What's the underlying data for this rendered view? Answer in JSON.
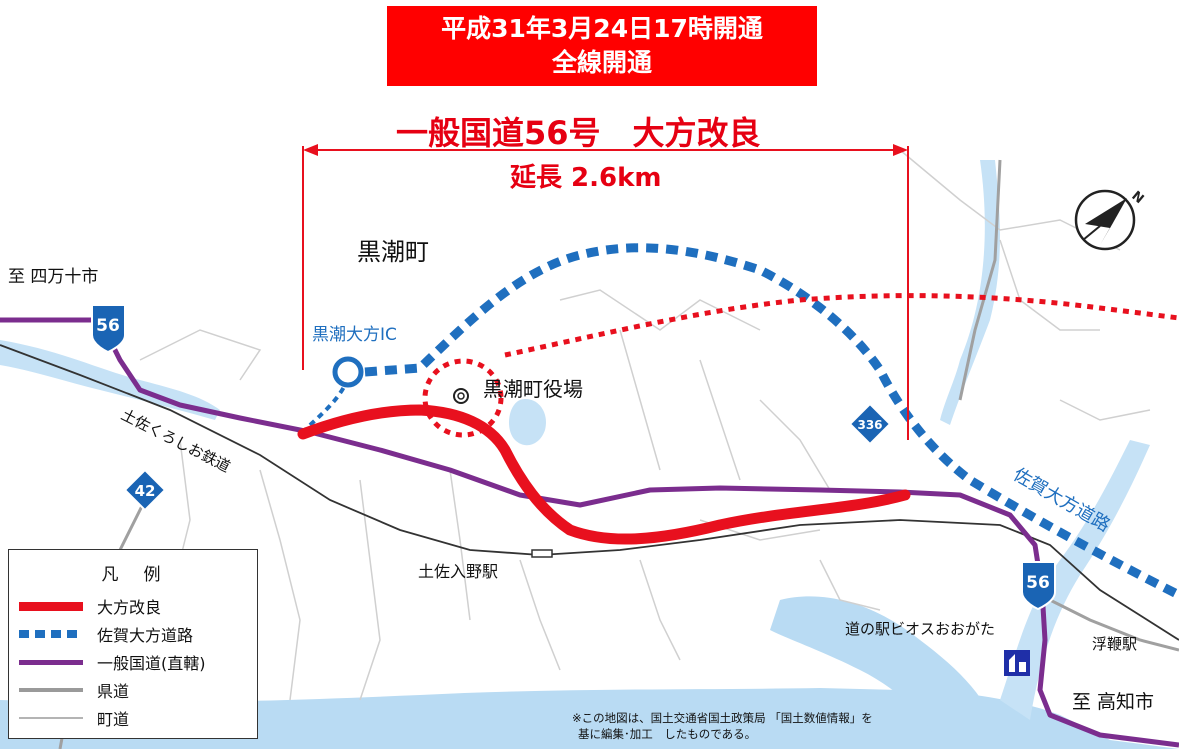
{
  "banner": {
    "line1": "平成31年3月24日17時開通",
    "line2": "全線開通"
  },
  "project": {
    "title": "一般国道56号　大方改良",
    "length": "延長 2.6km"
  },
  "places": {
    "town": "黒潮町",
    "to_shimanto": "至 四万十市",
    "interchange": "黒潮大方IC",
    "town_office": "黒潮町役場",
    "railway": "土佐くろしお鉄道",
    "station_tosairino": "土佐入野駅",
    "expressway": "佐賀大方道路",
    "roadside_station": "道の駅ビオスおおがた",
    "station_ukibuchi": "浮鞭駅",
    "to_kochi": "至 高知市"
  },
  "route_shields": {
    "r56_west": "56",
    "r42": "42",
    "r336": "336",
    "r56_east": "56"
  },
  "legend": {
    "title": "凡　例",
    "items": [
      {
        "label": "大方改良",
        "color": "#e8101e",
        "style": "solid-thick"
      },
      {
        "label": "佐賀大方道路",
        "color": "#1f6fbf",
        "style": "dashed"
      },
      {
        "label": "一般国道(直轄)",
        "color": "#7b2d8e",
        "style": "solid"
      },
      {
        "label": "県道",
        "color": "#9a9a9a",
        "style": "solid"
      },
      {
        "label": "町道",
        "color": "#b4b4b4",
        "style": "solid-thin"
      }
    ]
  },
  "note": {
    "line1": "※この地図は、国土交通省国土政策局 「国土数値情報」を",
    "line2": "基に編集･加工　したものである。"
  },
  "colors": {
    "improvement": "#e8101e",
    "expressway": "#1f6fbf",
    "national_road": "#7b2d8e",
    "water": "#b9dbf3",
    "banner": "#ff0000"
  }
}
